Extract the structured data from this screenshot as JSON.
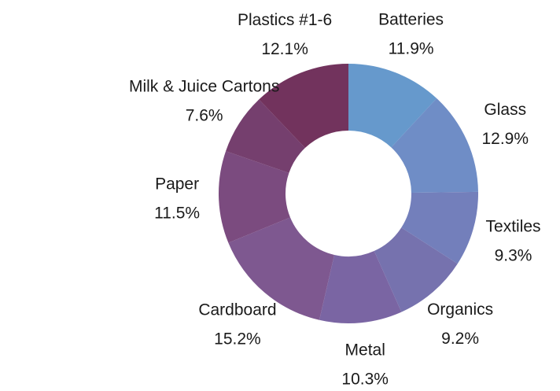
{
  "chart_data": {
    "type": "pie",
    "donut": true,
    "title": "",
    "slices": [
      {
        "label": "Batteries",
        "value": 11.9,
        "value_text": "11.9%",
        "color": "#6699CC"
      },
      {
        "label": "Glass",
        "value": 12.9,
        "value_text": "12.9%",
        "color": "#6F8DC6"
      },
      {
        "label": "Textiles",
        "value": 9.3,
        "value_text": "9.3%",
        "color": "#737FBB"
      },
      {
        "label": "Organics",
        "value": 9.2,
        "value_text": "9.2%",
        "color": "#7672AE"
      },
      {
        "label": "Metal",
        "value": 10.3,
        "value_text": "10.3%",
        "color": "#7A65A3"
      },
      {
        "label": "Cardboard",
        "value": 15.2,
        "value_text": "15.2%",
        "color": "#7E5890"
      },
      {
        "label": "Paper",
        "value": 11.5,
        "value_text": "11.5%",
        "color": "#7B4B7F"
      },
      {
        "label": "Milk & Juice Cartons",
        "value": 7.6,
        "value_text": "7.6%",
        "color": "#753F6E"
      },
      {
        "label": "Plastics #1-6",
        "value": 12.1,
        "value_text": "12.1%",
        "color": "#72335D"
      }
    ],
    "start_angle": "top",
    "direction": "clockwise",
    "legend": "none"
  }
}
